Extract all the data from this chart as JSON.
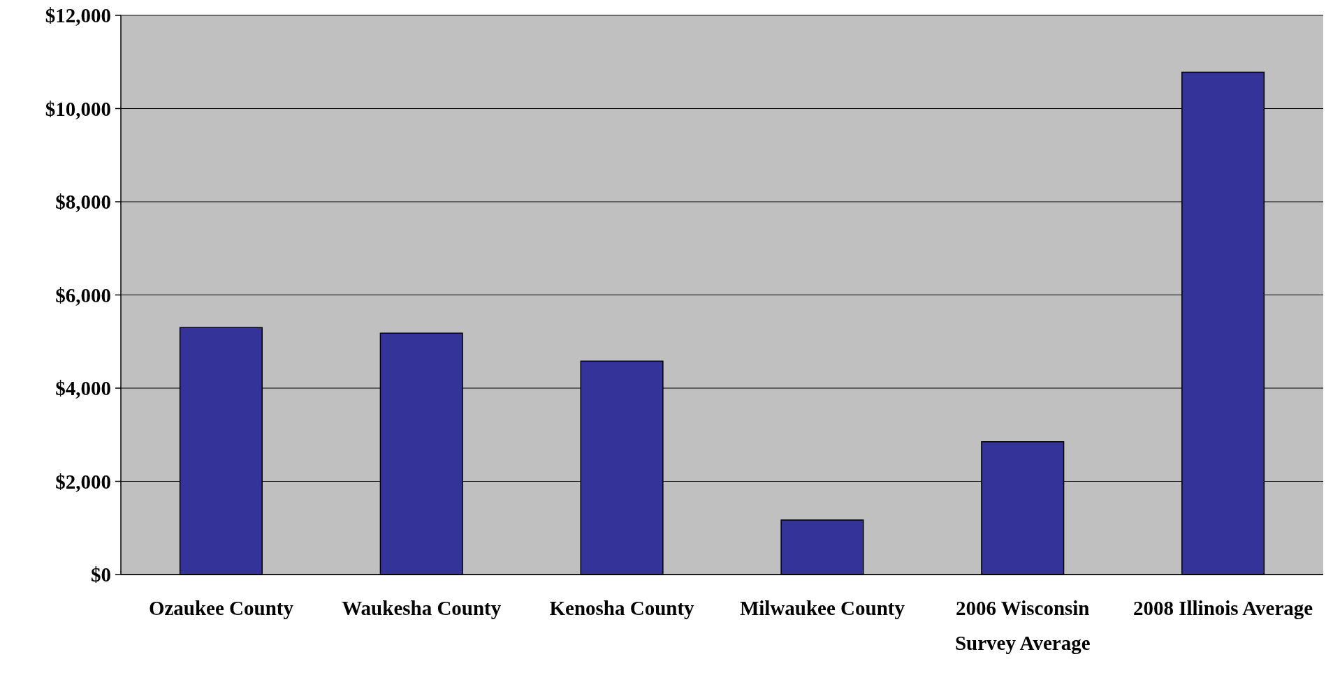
{
  "chart_data": {
    "type": "bar",
    "categories": [
      "Ozaukee County",
      "Waukesha County",
      "Kenosha County",
      "Milwaukee County",
      "2006 Wisconsin Survey Average",
      "2008 Illinois Average"
    ],
    "values": [
      5300,
      5180,
      4580,
      1170,
      2850,
      10780
    ],
    "color": "#333399",
    "ylim": [
      0,
      12000
    ],
    "yticks": [
      {
        "value": 0,
        "label": "$0"
      },
      {
        "value": 2000,
        "label": "$2,000"
      },
      {
        "value": 4000,
        "label": "$4,000"
      },
      {
        "value": 6000,
        "label": "$6,000"
      },
      {
        "value": 8000,
        "label": "$8,000"
      },
      {
        "value": 10000,
        "label": "$10,000"
      },
      {
        "value": 12000,
        "label": "$12,000"
      }
    ],
    "grid": "y"
  }
}
